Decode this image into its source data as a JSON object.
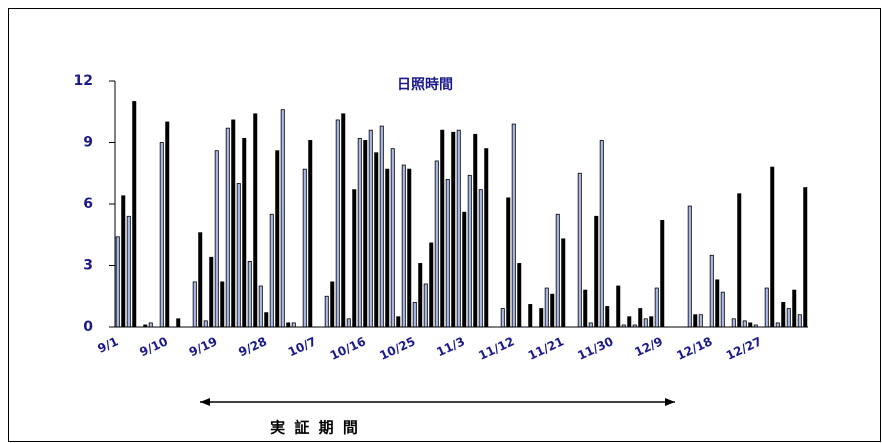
{
  "chart_data": {
    "type": "bar",
    "title": "日照時間",
    "annotation": "実 証 期 間",
    "categories": [
      "9/1",
      null,
      null,
      null,
      null,
      null,
      null,
      null,
      null,
      "9/10",
      null,
      null,
      null,
      null,
      null,
      null,
      null,
      null,
      "9/19",
      null,
      null,
      null,
      null,
      null,
      null,
      null,
      null,
      "9/28",
      null,
      null,
      null,
      null,
      null,
      null,
      null,
      null,
      "10/7",
      null,
      null,
      null,
      null,
      null,
      null,
      null,
      null,
      "10/16",
      null,
      null,
      null,
      null,
      null,
      null,
      null,
      null,
      "10/25",
      null,
      null,
      null,
      null,
      null,
      null,
      null,
      null,
      "11/3",
      null,
      null,
      null,
      null,
      null,
      null,
      null,
      null,
      "11/12",
      null,
      null,
      null,
      null,
      null,
      null,
      null,
      null,
      "11/21",
      null,
      null,
      null,
      null,
      null,
      null,
      null,
      null,
      "11/30",
      null,
      null,
      null,
      null,
      null,
      null,
      null,
      null,
      "12/9",
      null,
      null,
      null,
      null,
      null,
      null,
      null,
      null,
      "12/18",
      null,
      null,
      null,
      null,
      null,
      null,
      null,
      null,
      "12/27",
      null,
      null,
      null,
      null,
      null,
      null,
      null,
      null
    ],
    "values": [
      4.4,
      6.4,
      5.4,
      11.0,
      0,
      0.1,
      0.2,
      0,
      9.0,
      10.0,
      0,
      0.4,
      0,
      0,
      2.2,
      4.6,
      0.3,
      3.4,
      8.6,
      2.2,
      9.7,
      10.1,
      7.0,
      9.2,
      3.2,
      10.4,
      2.0,
      0.7,
      5.5,
      8.6,
      10.6,
      0.2,
      0.2,
      0,
      7.7,
      9.1,
      0,
      0,
      1.5,
      2.2,
      10.1,
      10.4,
      0.4,
      6.7,
      9.2,
      9.1,
      9.6,
      8.5,
      9.8,
      7.7,
      8.7,
      0.5,
      7.9,
      7.7,
      1.2,
      3.1,
      2.1,
      4.1,
      8.1,
      9.6,
      7.2,
      9.5,
      9.6,
      5.6,
      7.4,
      9.4,
      6.7,
      8.7,
      0,
      0,
      0.9,
      6.3,
      9.9,
      3.1,
      0,
      1.1,
      0,
      0.9,
      1.9,
      1.6,
      5.5,
      4.3,
      0,
      0,
      7.5,
      1.8,
      0.2,
      5.4,
      9.1,
      1.0,
      0,
      2.0,
      0.1,
      0.5,
      0.1,
      0.9,
      0.4,
      0.5,
      1.9,
      5.2,
      0,
      0,
      0,
      0,
      5.9,
      0.6,
      0.6,
      0,
      3.5,
      2.3,
      1.7,
      0,
      0.4,
      6.5,
      0.3,
      0.2,
      0.1,
      0,
      1.9,
      7.8,
      0.2,
      1.2,
      0.9,
      1.8,
      0.6,
      6.8
    ],
    "colors": [
      "#a8b8e8",
      "#000000"
    ],
    "ylim": [
      0,
      12
    ],
    "yticks": [
      0,
      3,
      6,
      9,
      12
    ]
  }
}
